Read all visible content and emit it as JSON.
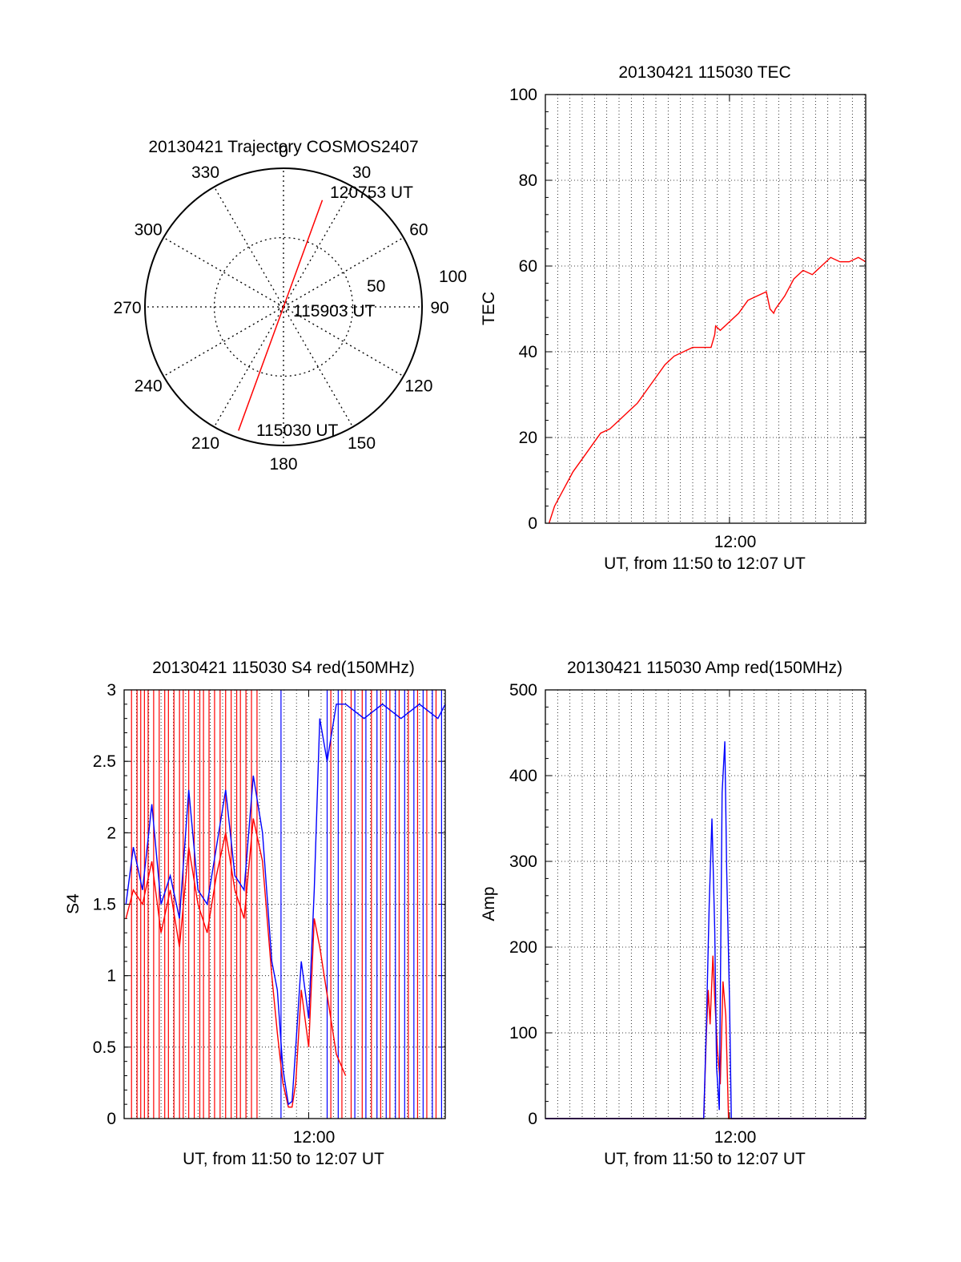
{
  "chart_data": [
    {
      "id": "trajectory",
      "type": "polar",
      "title": "20130421 Trajectory COSMOS2407",
      "azimuth_labels": [
        "0",
        "30",
        "60",
        "90",
        "120",
        "150",
        "180",
        "210",
        "240",
        "270",
        "300",
        "330"
      ],
      "radius_labels": [
        "50",
        "100"
      ],
      "start_label": "115030 UT",
      "mid_label": "115903 UT",
      "end_label": "120753 UT",
      "track": {
        "start": {
          "az": 200,
          "zen": 95
        },
        "end": {
          "az": 20,
          "zen": 82
        }
      },
      "line_color": "#ff0000"
    },
    {
      "id": "tec",
      "type": "line",
      "title": "20130421 115030 TEC",
      "xlabel": "UT, from 11:50 to 12:07 UT",
      "ylabel": "TEC",
      "x_tick_label": "12:00",
      "xlim_minutes": [
        0,
        17.4
      ],
      "ylim": [
        0,
        100
      ],
      "yticks": [
        "0",
        "20",
        "40",
        "60",
        "80",
        "100"
      ],
      "grid": true,
      "series": [
        {
          "color": "#ff0000",
          "x": [
            0.2,
            0.5,
            1.0,
            1.5,
            2.0,
            2.5,
            3.0,
            3.5,
            4.0,
            4.5,
            5.0,
            5.5,
            6.0,
            6.5,
            7.0,
            7.5,
            8.0,
            8.5,
            9.0,
            9.2,
            9.25,
            9.5,
            10.0,
            10.5,
            11.0,
            11.5,
            12.0,
            12.2,
            12.4,
            12.5,
            13.0,
            13.5,
            14.0,
            14.5,
            15.0,
            15.5,
            16.0,
            16.5,
            17.0,
            17.4
          ],
          "y": [
            0,
            4,
            8,
            12,
            15,
            18,
            21,
            22,
            24,
            26,
            28,
            31,
            34,
            37,
            39,
            40,
            41,
            41,
            41,
            44,
            46,
            45,
            47,
            49,
            52,
            53,
            54,
            50,
            49,
            50,
            53,
            57,
            59,
            58,
            60,
            62,
            61,
            61,
            62,
            61
          ]
        }
      ]
    },
    {
      "id": "s4",
      "type": "line",
      "title": "20130421 115030 S4 red(150MHz)",
      "xlabel": "UT, from 11:50 to 12:07 UT",
      "ylabel": "S4",
      "x_tick_label": "12:00",
      "xlim_minutes": [
        0,
        17.4
      ],
      "ylim": [
        0,
        3
      ],
      "yticks": [
        "0",
        "0.5",
        "1",
        "1.5",
        "2",
        "2.5",
        "3"
      ],
      "grid": true,
      "series": [
        {
          "color": "#ff0000",
          "x": [
            0.1,
            0.5,
            1.0,
            1.5,
            2.0,
            2.5,
            3.0,
            3.5,
            4.0,
            4.5,
            5.0,
            5.5,
            6.0,
            6.5,
            7.0,
            7.5,
            8.0,
            8.3,
            8.6,
            8.9,
            9.1,
            9.3,
            9.6,
            10.0,
            10.3,
            10.6,
            11.5,
            12.0
          ],
          "y": [
            1.4,
            1.6,
            1.5,
            1.8,
            1.3,
            1.6,
            1.2,
            1.9,
            1.5,
            1.3,
            1.7,
            2.0,
            1.6,
            1.4,
            2.1,
            1.8,
            1.0,
            0.6,
            0.25,
            0.08,
            0.08,
            0.25,
            0.9,
            0.5,
            1.4,
            1.2,
            0.45,
            0.3
          ]
        },
        {
          "color": "#0000ff",
          "x": [
            0.1,
            0.5,
            1.0,
            1.5,
            2.0,
            2.5,
            3.0,
            3.5,
            4.0,
            4.5,
            5.0,
            5.5,
            6.0,
            6.5,
            7.0,
            7.5,
            8.0,
            8.3,
            8.6,
            8.9,
            9.1,
            9.3,
            9.6,
            10.0,
            10.3,
            10.6,
            11.0,
            11.5,
            12.0,
            13.0,
            14.0,
            15.0,
            16.0,
            17.0,
            17.4
          ],
          "y": [
            1.5,
            1.9,
            1.6,
            2.2,
            1.5,
            1.7,
            1.4,
            2.3,
            1.6,
            1.5,
            1.9,
            2.3,
            1.7,
            1.6,
            2.4,
            2.0,
            1.1,
            0.9,
            0.35,
            0.1,
            0.12,
            0.5,
            1.1,
            0.7,
            1.6,
            2.8,
            2.5,
            2.9,
            2.9,
            2.8,
            2.9,
            2.8,
            2.9,
            2.8,
            2.9
          ]
        }
      ],
      "spikes": [
        {
          "color": "#ff0000",
          "x": [
            0.4,
            0.7,
            0.9,
            1.1,
            1.3,
            1.6,
            1.9,
            2.2,
            2.4,
            2.7,
            3.0,
            3.2,
            3.5,
            3.8,
            4.1,
            4.3,
            4.6,
            4.9,
            5.2,
            5.5,
            5.8,
            6.1,
            6.3,
            6.6,
            6.9,
            7.2,
            11.2,
            11.8,
            12.3,
            12.9,
            13.4,
            13.9,
            14.4,
            14.9,
            15.4,
            15.9,
            16.4,
            16.9
          ]
        },
        {
          "color": "#0000ff",
          "x": [
            8.5,
            11.0,
            11.6,
            12.5,
            13.1,
            13.7,
            14.2,
            14.7,
            15.2,
            15.7,
            16.2,
            16.7,
            17.2
          ]
        }
      ]
    },
    {
      "id": "amp",
      "type": "line",
      "title": "20130421 115030 Amp red(150MHz)",
      "xlabel": "UT, from 11:50 to 12:07 UT",
      "ylabel": "Amp",
      "x_tick_label": "12:00",
      "xlim_minutes": [
        0,
        17.4
      ],
      "ylim": [
        0,
        500
      ],
      "yticks": [
        "0",
        "100",
        "200",
        "300",
        "400",
        "500"
      ],
      "grid": true,
      "series": [
        {
          "color": "#ff0000",
          "x": [
            0,
            8.6,
            8.75,
            8.85,
            8.95,
            9.1,
            9.2,
            9.35,
            9.5,
            9.65,
            9.8,
            9.95,
            17.4
          ],
          "y": [
            0,
            0,
            100,
            150,
            110,
            190,
            140,
            80,
            40,
            160,
            120,
            0,
            0
          ]
        },
        {
          "color": "#0000ff",
          "x": [
            0,
            8.6,
            8.75,
            8.9,
            9.05,
            9.2,
            9.3,
            9.45,
            9.6,
            9.75,
            9.85,
            10.0,
            10.1,
            17.4
          ],
          "y": [
            0,
            0,
            110,
            250,
            350,
            220,
            60,
            10,
            380,
            440,
            290,
            140,
            0,
            0
          ]
        }
      ]
    }
  ]
}
